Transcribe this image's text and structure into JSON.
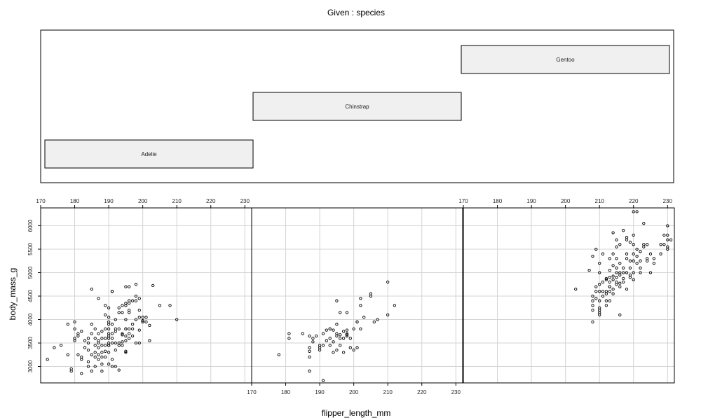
{
  "chart_data": {
    "type": "scatter",
    "title": "Given : species",
    "xlabel": "flipper_length_mm",
    "ylabel": "body_mass_g",
    "xlim": [
      170,
      232
    ],
    "ylim": [
      2650,
      6380
    ],
    "x_ticks": [
      170,
      180,
      190,
      200,
      210,
      220,
      230
    ],
    "y_ticks": [
      3000,
      3500,
      4000,
      4500,
      5000,
      5500,
      6000
    ],
    "grid": true,
    "given_panel": {
      "levels": [
        "Adelie",
        "Chinstrap",
        "Gentoo"
      ]
    },
    "panels": [
      {
        "name": "Adelie",
        "points": [
          [
            172,
            3150
          ],
          [
            174,
            3400
          ],
          [
            176,
            3450
          ],
          [
            178,
            3900
          ],
          [
            178,
            3250
          ],
          [
            179,
            2950
          ],
          [
            179,
            2900
          ],
          [
            180,
            3950
          ],
          [
            180,
            3600
          ],
          [
            180,
            3550
          ],
          [
            180,
            3800
          ],
          [
            181,
            3700
          ],
          [
            181,
            3650
          ],
          [
            181,
            3250
          ],
          [
            182,
            3750
          ],
          [
            182,
            3200
          ],
          [
            182,
            3150
          ],
          [
            182,
            2850
          ],
          [
            183,
            3400
          ],
          [
            183,
            3550
          ],
          [
            184,
            3500
          ],
          [
            184,
            3350
          ],
          [
            184,
            3600
          ],
          [
            184,
            3100
          ],
          [
            184,
            3000
          ],
          [
            185,
            3700
          ],
          [
            185,
            3900
          ],
          [
            185,
            3250
          ],
          [
            185,
            2900
          ],
          [
            185,
            4650
          ],
          [
            186,
            3800
          ],
          [
            186,
            3600
          ],
          [
            186,
            3450
          ],
          [
            186,
            3200
          ],
          [
            186,
            3300
          ],
          [
            186,
            3000
          ],
          [
            187,
            3700
          ],
          [
            187,
            3500
          ],
          [
            187,
            3250
          ],
          [
            187,
            3400
          ],
          [
            187,
            3550
          ],
          [
            187,
            3150
          ],
          [
            187,
            4450
          ],
          [
            188,
            3300
          ],
          [
            188,
            3600
          ],
          [
            188,
            3450
          ],
          [
            188,
            3200
          ],
          [
            188,
            2900
          ],
          [
            188,
            3750
          ],
          [
            188,
            3050
          ],
          [
            189,
            3600
          ],
          [
            189,
            3200
          ],
          [
            189,
            3450
          ],
          [
            189,
            3325
          ],
          [
            189,
            4100
          ],
          [
            189,
            4300
          ],
          [
            189,
            3800
          ],
          [
            190,
            3800
          ],
          [
            190,
            3650
          ],
          [
            190,
            3450
          ],
          [
            190,
            3600
          ],
          [
            190,
            3950
          ],
          [
            190,
            3700
          ],
          [
            190,
            3900
          ],
          [
            190,
            3500
          ],
          [
            190,
            3050
          ],
          [
            190,
            4250
          ],
          [
            190,
            3300
          ],
          [
            190,
            4050
          ],
          [
            190,
            3450
          ],
          [
            191,
            3600
          ],
          [
            191,
            3700
          ],
          [
            191,
            4600
          ],
          [
            191,
            3150
          ],
          [
            191,
            3900
          ],
          [
            191,
            3500
          ],
          [
            191,
            3000
          ],
          [
            191,
            4600
          ],
          [
            192,
            3500
          ],
          [
            192,
            3800
          ],
          [
            192,
            4000
          ],
          [
            192,
            3750
          ],
          [
            192,
            3000
          ],
          [
            192,
            3350
          ],
          [
            193,
            3500
          ],
          [
            193,
            3800
          ],
          [
            193,
            3450
          ],
          [
            193,
            2925
          ],
          [
            193,
            4250
          ],
          [
            193,
            4150
          ],
          [
            194,
            3675
          ],
          [
            194,
            3450
          ],
          [
            194,
            4150
          ],
          [
            194,
            3700
          ],
          [
            194,
            4300
          ],
          [
            194,
            3525
          ],
          [
            195,
            4000
          ],
          [
            195,
            3650
          ],
          [
            195,
            3325
          ],
          [
            195,
            3300
          ],
          [
            195,
            3800
          ],
          [
            195,
            4350
          ],
          [
            195,
            4700
          ],
          [
            195,
            3550
          ],
          [
            195,
            3800
          ],
          [
            195,
            4300
          ],
          [
            196,
            4150
          ],
          [
            196,
            4700
          ],
          [
            196,
            3700
          ],
          [
            196,
            4400
          ],
          [
            196,
            3800
          ],
          [
            196,
            4350
          ],
          [
            196,
            3600
          ],
          [
            196,
            4200
          ],
          [
            197,
            3800
          ],
          [
            197,
            4400
          ],
          [
            197,
            3900
          ],
          [
            197,
            3650
          ],
          [
            198,
            4400
          ],
          [
            198,
            4000
          ],
          [
            198,
            4750
          ],
          [
            198,
            3500
          ],
          [
            198,
            4500
          ],
          [
            199,
            4050
          ],
          [
            199,
            4450
          ],
          [
            199,
            3775
          ],
          [
            199,
            4200
          ],
          [
            199,
            3500
          ],
          [
            200,
            3950
          ],
          [
            200,
            3975
          ],
          [
            200,
            4050
          ],
          [
            201,
            4050
          ],
          [
            201,
            3950
          ],
          [
            202,
            3875
          ],
          [
            202,
            3550
          ],
          [
            203,
            4725
          ],
          [
            205,
            4300
          ],
          [
            208,
            4300
          ],
          [
            210,
            4000
          ]
        ]
      },
      {
        "name": "Chinstrap",
        "points": [
          [
            178,
            3250
          ],
          [
            181,
            3700
          ],
          [
            181,
            3600
          ],
          [
            185,
            3700
          ],
          [
            187,
            3650
          ],
          [
            187,
            3400
          ],
          [
            187,
            2900
          ],
          [
            187,
            3325
          ],
          [
            187,
            3200
          ],
          [
            188,
            3525
          ],
          [
            188,
            3600
          ],
          [
            189,
            3650
          ],
          [
            190,
            3400
          ],
          [
            190,
            3450
          ],
          [
            190,
            3350
          ],
          [
            191,
            3700
          ],
          [
            191,
            3450
          ],
          [
            191,
            2700
          ],
          [
            192,
            3550
          ],
          [
            192,
            3775
          ],
          [
            193,
            3800
          ],
          [
            193,
            3450
          ],
          [
            193,
            3600
          ],
          [
            193,
            3800
          ],
          [
            194,
            3775
          ],
          [
            194,
            3525
          ],
          [
            195,
            3650
          ],
          [
            195,
            4400
          ],
          [
            195,
            3900
          ],
          [
            195,
            3350
          ],
          [
            195,
            3700
          ],
          [
            196,
            3450
          ],
          [
            196,
            3675
          ],
          [
            196,
            3600
          ],
          [
            196,
            4150
          ],
          [
            197,
            3300
          ],
          [
            197,
            3750
          ],
          [
            197,
            3600
          ],
          [
            198,
            3775
          ],
          [
            198,
            3675
          ],
          [
            198,
            3700
          ],
          [
            198,
            3650
          ],
          [
            198,
            4150
          ],
          [
            199,
            3400
          ],
          [
            200,
            3800
          ],
          [
            200,
            3350
          ],
          [
            201,
            3400
          ],
          [
            201,
            3950
          ],
          [
            201,
            3950
          ],
          [
            202,
            4450
          ],
          [
            202,
            4300
          ],
          [
            203,
            4050
          ],
          [
            205,
            4550
          ],
          [
            205,
            4500
          ],
          [
            206,
            3950
          ],
          [
            207,
            4000
          ],
          [
            210,
            4800
          ],
          [
            210,
            4100
          ],
          [
            212,
            4300
          ],
          [
            202,
            3800
          ],
          [
            199,
            3600
          ],
          [
            194,
            3300
          ]
        ]
      },
      {
        "name": "Gentoo",
        "points": [
          [
            203,
            4650
          ],
          [
            207,
            5050
          ],
          [
            208,
            4300
          ],
          [
            208,
            4400
          ],
          [
            208,
            4500
          ],
          [
            208,
            3950
          ],
          [
            208,
            4200
          ],
          [
            208,
            5350
          ],
          [
            209,
            4450
          ],
          [
            209,
            4700
          ],
          [
            209,
            4600
          ],
          [
            209,
            5500
          ],
          [
            210,
            4400
          ],
          [
            210,
            4150
          ],
          [
            210,
            4600
          ],
          [
            210,
            5000
          ],
          [
            210,
            4100
          ],
          [
            210,
            4250
          ],
          [
            210,
            4750
          ],
          [
            210,
            5200
          ],
          [
            210,
            4200
          ],
          [
            211,
            4800
          ],
          [
            211,
            4500
          ],
          [
            211,
            4600
          ],
          [
            211,
            5400
          ],
          [
            212,
            4875
          ],
          [
            212,
            4300
          ],
          [
            212,
            4550
          ],
          [
            212,
            4400
          ],
          [
            212,
            4850
          ],
          [
            212,
            4600
          ],
          [
            213,
            4700
          ],
          [
            213,
            5050
          ],
          [
            213,
            4900
          ],
          [
            213,
            4800
          ],
          [
            213,
            4400
          ],
          [
            213,
            4700
          ],
          [
            213,
            5300
          ],
          [
            214,
            4650
          ],
          [
            214,
            5150
          ],
          [
            214,
            4850
          ],
          [
            214,
            4550
          ],
          [
            214,
            5400
          ],
          [
            214,
            5850
          ],
          [
            214,
            4925
          ],
          [
            215,
            4750
          ],
          [
            215,
            5000
          ],
          [
            215,
            4900
          ],
          [
            215,
            5100
          ],
          [
            215,
            5550
          ],
          [
            215,
            4800
          ],
          [
            215,
            5300
          ],
          [
            215,
            5700
          ],
          [
            216,
            4775
          ],
          [
            216,
            4950
          ],
          [
            216,
            5000
          ],
          [
            216,
            5600
          ],
          [
            216,
            4700
          ],
          [
            216,
            4100
          ],
          [
            216,
            5200
          ],
          [
            217,
            4875
          ],
          [
            217,
            5100
          ],
          [
            217,
            4800
          ],
          [
            217,
            5900
          ],
          [
            218,
            5700
          ],
          [
            218,
            5300
          ],
          [
            218,
            5750
          ],
          [
            218,
            4650
          ],
          [
            218,
            5400
          ],
          [
            218,
            5000
          ],
          [
            219,
            5250
          ],
          [
            219,
            5650
          ],
          [
            219,
            5100
          ],
          [
            219,
            4900
          ],
          [
            220,
            5600
          ],
          [
            220,
            5250
          ],
          [
            220,
            6300
          ],
          [
            220,
            5800
          ],
          [
            220,
            5000
          ],
          [
            220,
            4850
          ],
          [
            220,
            5400
          ],
          [
            221,
            5200
          ],
          [
            221,
            6300
          ],
          [
            221,
            5350
          ],
          [
            221,
            5500
          ],
          [
            222,
            5450
          ],
          [
            222,
            5000
          ],
          [
            222,
            5250
          ],
          [
            223,
            5550
          ],
          [
            223,
            6050
          ],
          [
            223,
            5600
          ],
          [
            224,
            5250
          ],
          [
            224,
            5600
          ],
          [
            225,
            5000
          ],
          [
            225,
            5400
          ],
          [
            226,
            5300
          ],
          [
            226,
            5200
          ],
          [
            228,
            5600
          ],
          [
            229,
            5600
          ],
          [
            229,
            5800
          ],
          [
            230,
            5700
          ],
          [
            230,
            5800
          ],
          [
            230,
            6000
          ],
          [
            230,
            5550
          ],
          [
            231,
            5700
          ],
          [
            230,
            5500
          ],
          [
            228,
            5400
          ],
          [
            224,
            5300
          ],
          [
            222,
            5100
          ],
          [
            219,
            4950
          ],
          [
            217,
            5000
          ],
          [
            213,
            4600
          ]
        ]
      }
    ]
  }
}
